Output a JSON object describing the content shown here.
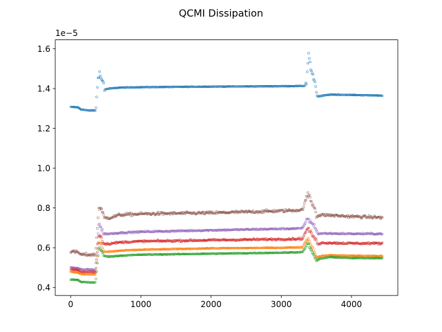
{
  "chart_data": {
    "type": "scatter",
    "title": "QCMI Dissipation",
    "xlabel": "",
    "ylabel": "",
    "y_offset_label": "1e−5",
    "xlim": [
      -220,
      4660
    ],
    "ylim": [
      0.36,
      1.645
    ],
    "x_ticks": [
      0,
      1000,
      2000,
      3000,
      4000
    ],
    "x_tick_labels": [
      "0",
      "1000",
      "2000",
      "3000",
      "4000"
    ],
    "y_ticks": [
      0.4,
      0.6,
      0.8,
      1.0,
      1.2,
      1.4,
      1.6
    ],
    "y_tick_labels": [
      "0.4",
      "0.6",
      "0.8",
      "1.0",
      "1.2",
      "1.4",
      "1.6"
    ],
    "grid": false,
    "legend": "none",
    "marker": "hollow-square",
    "x_max": 4440,
    "series": [
      {
        "color": "#1f77b4",
        "noise": 0.002,
        "points": [
          [
            0,
            1.308
          ],
          [
            100,
            1.306
          ],
          [
            150,
            1.295
          ],
          [
            250,
            1.29
          ],
          [
            350,
            1.29
          ],
          [
            360,
            1.3
          ],
          [
            390,
            1.46
          ],
          [
            410,
            1.48
          ],
          [
            430,
            1.45
          ],
          [
            470,
            1.43
          ],
          [
            480,
            1.395
          ],
          [
            550,
            1.4
          ],
          [
            700,
            1.405
          ],
          [
            1000,
            1.407
          ],
          [
            2000,
            1.41
          ],
          [
            3000,
            1.412
          ],
          [
            3330,
            1.413
          ],
          [
            3360,
            1.43
          ],
          [
            3390,
            1.58
          ],
          [
            3420,
            1.5
          ],
          [
            3450,
            1.46
          ],
          [
            3480,
            1.43
          ],
          [
            3500,
            1.375
          ],
          [
            3520,
            1.36
          ],
          [
            3600,
            1.365
          ],
          [
            3700,
            1.37
          ],
          [
            4000,
            1.368
          ],
          [
            4440,
            1.365
          ]
        ],
        "scatter_ranges": [
          [
            360,
            480,
            0.04
          ],
          [
            3350,
            3510,
            0.04
          ]
        ]
      },
      {
        "color": "#8c564b",
        "noise": 0.012,
        "points": [
          [
            0,
            0.58
          ],
          [
            100,
            0.578
          ],
          [
            150,
            0.565
          ],
          [
            350,
            0.565
          ],
          [
            360,
            0.6
          ],
          [
            400,
            0.8
          ],
          [
            430,
            0.8
          ],
          [
            450,
            0.78
          ],
          [
            480,
            0.75
          ],
          [
            550,
            0.75
          ],
          [
            700,
            0.765
          ],
          [
            1000,
            0.77
          ],
          [
            2000,
            0.775
          ],
          [
            3000,
            0.785
          ],
          [
            3300,
            0.79
          ],
          [
            3380,
            0.87
          ],
          [
            3400,
            0.86
          ],
          [
            3440,
            0.82
          ],
          [
            3480,
            0.8
          ],
          [
            3500,
            0.76
          ],
          [
            3600,
            0.765
          ],
          [
            4000,
            0.757
          ],
          [
            4440,
            0.752
          ]
        ],
        "scatter_ranges": [
          [
            360,
            460,
            0.04
          ],
          [
            3360,
            3500,
            0.04
          ]
        ]
      },
      {
        "color": "#9467bd",
        "noise": 0.006,
        "points": [
          [
            0,
            0.5
          ],
          [
            100,
            0.498
          ],
          [
            150,
            0.49
          ],
          [
            350,
            0.49
          ],
          [
            360,
            0.52
          ],
          [
            400,
            0.72
          ],
          [
            430,
            0.7
          ],
          [
            470,
            0.67
          ],
          [
            550,
            0.67
          ],
          [
            700,
            0.675
          ],
          [
            1000,
            0.68
          ],
          [
            2000,
            0.688
          ],
          [
            3000,
            0.695
          ],
          [
            3300,
            0.697
          ],
          [
            3380,
            0.75
          ],
          [
            3410,
            0.73
          ],
          [
            3450,
            0.72
          ],
          [
            3490,
            0.7
          ],
          [
            3520,
            0.67
          ],
          [
            3600,
            0.672
          ],
          [
            4000,
            0.67
          ],
          [
            4440,
            0.67
          ]
        ],
        "scatter_ranges": [
          [
            360,
            460,
            0.03
          ],
          [
            3360,
            3500,
            0.03
          ]
        ]
      },
      {
        "color": "#d62728",
        "noise": 0.008,
        "points": [
          [
            0,
            0.49
          ],
          [
            100,
            0.488
          ],
          [
            150,
            0.478
          ],
          [
            350,
            0.478
          ],
          [
            360,
            0.5
          ],
          [
            400,
            0.66
          ],
          [
            430,
            0.66
          ],
          [
            470,
            0.62
          ],
          [
            550,
            0.62
          ],
          [
            700,
            0.627
          ],
          [
            1000,
            0.632
          ],
          [
            2000,
            0.638
          ],
          [
            3000,
            0.643
          ],
          [
            3300,
            0.645
          ],
          [
            3380,
            0.7
          ],
          [
            3410,
            0.68
          ],
          [
            3450,
            0.66
          ],
          [
            3490,
            0.64
          ],
          [
            3520,
            0.62
          ],
          [
            3600,
            0.625
          ],
          [
            4000,
            0.622
          ],
          [
            4440,
            0.622
          ]
        ],
        "scatter_ranges": [
          [
            360,
            460,
            0.03
          ],
          [
            3360,
            3500,
            0.03
          ]
        ]
      },
      {
        "color": "#ff7f0e",
        "noise": 0.003,
        "points": [
          [
            0,
            0.48
          ],
          [
            100,
            0.475
          ],
          [
            150,
            0.468
          ],
          [
            350,
            0.465
          ],
          [
            360,
            0.48
          ],
          [
            400,
            0.63
          ],
          [
            430,
            0.62
          ],
          [
            470,
            0.58
          ],
          [
            550,
            0.58
          ],
          [
            700,
            0.585
          ],
          [
            1000,
            0.59
          ],
          [
            2000,
            0.597
          ],
          [
            3000,
            0.6
          ],
          [
            3300,
            0.602
          ],
          [
            3380,
            0.65
          ],
          [
            3410,
            0.62
          ],
          [
            3450,
            0.6
          ],
          [
            3480,
            0.57
          ],
          [
            3500,
            0.55
          ],
          [
            3550,
            0.558
          ],
          [
            3700,
            0.562
          ],
          [
            4000,
            0.56
          ],
          [
            4440,
            0.558
          ]
        ],
        "scatter_ranges": [
          [
            360,
            460,
            0.025
          ],
          [
            3360,
            3500,
            0.025
          ]
        ]
      },
      {
        "color": "#2ca02c",
        "noise": 0.003,
        "points": [
          [
            0,
            0.44
          ],
          [
            100,
            0.438
          ],
          [
            150,
            0.428
          ],
          [
            350,
            0.425
          ],
          [
            360,
            0.44
          ],
          [
            400,
            0.6
          ],
          [
            430,
            0.59
          ],
          [
            470,
            0.56
          ],
          [
            550,
            0.555
          ],
          [
            700,
            0.56
          ],
          [
            1000,
            0.565
          ],
          [
            2000,
            0.57
          ],
          [
            3000,
            0.575
          ],
          [
            3300,
            0.578
          ],
          [
            3380,
            0.62
          ],
          [
            3410,
            0.6
          ],
          [
            3450,
            0.57
          ],
          [
            3480,
            0.545
          ],
          [
            3500,
            0.535
          ],
          [
            3550,
            0.545
          ],
          [
            3700,
            0.553
          ],
          [
            4000,
            0.548
          ],
          [
            4440,
            0.548
          ]
        ],
        "scatter_ranges": [
          [
            360,
            460,
            0.025
          ],
          [
            3360,
            3500,
            0.025
          ]
        ]
      }
    ]
  }
}
